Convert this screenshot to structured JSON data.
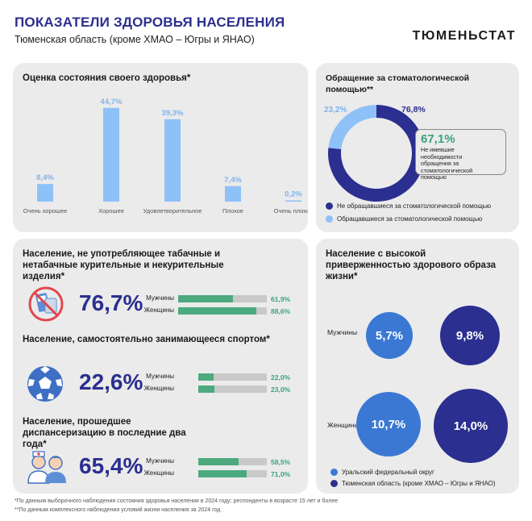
{
  "header": {
    "title": "ПОКАЗАТЕЛИ ЗДОРОВЬЯ НАСЕЛЕНИЯ",
    "subtitle": "Тюменская область (кроме ХМАО – Югры и ЯНАО)",
    "brand": "ТЮМЕНЬСТАТ"
  },
  "colors": {
    "light_blue": "#8ec1f7",
    "dark_blue": "#2b2f8f",
    "mid_blue": "#3a78d4",
    "green": "#4daa7e",
    "gray": "#c9c9c9"
  },
  "chart_data": [
    {
      "type": "bar",
      "title": "Оценка состояния своего здоровья*",
      "categories": [
        "Очень хорошее",
        "Хорошее",
        "Удовлетворительное",
        "Плохое",
        "Очень плохое"
      ],
      "values": [
        8.4,
        44.7,
        39.3,
        7.4,
        0.2
      ],
      "value_labels": [
        "8,4%",
        "44,7%",
        "39,3%",
        "7,4%",
        "0,2%"
      ],
      "ylim": [
        0,
        50
      ]
    },
    {
      "type": "pie",
      "title": "Обращение за стоматологической помощью**",
      "series": [
        {
          "name": "Не обращавшиеся за стоматологической помощью",
          "value": 76.8,
          "label": "76,8%"
        },
        {
          "name": "Обращавшиеся за стоматологической помощью",
          "value": 23.2,
          "label": "23,2%"
        }
      ],
      "annotation": {
        "value": "67,1%",
        "text": "Не имевшие необходимости обращения за стоматологической помощью"
      }
    },
    {
      "type": "bar",
      "title": "Население, не употребляющее табачные и нетабачные курительные и некурительные изделия*",
      "total_label": "76,7%",
      "categories": [
        "Мужчины",
        "Женщины"
      ],
      "values": [
        61.9,
        88.6
      ],
      "value_labels": [
        "61,9%",
        "88,6%"
      ],
      "xlim": [
        0,
        100
      ]
    },
    {
      "type": "bar",
      "title": "Население, самостоятельно занимающееся спортом*",
      "total_label": "22,6%",
      "categories": [
        "Мужчины",
        "Женщины"
      ],
      "values": [
        22.0,
        23.0
      ],
      "value_labels": [
        "22,0%",
        "23,0%"
      ],
      "xlim": [
        0,
        100
      ]
    },
    {
      "type": "bar",
      "title": "Население, прошедшее диспансеризацию в последние два года*",
      "total_label": "65,4%",
      "categories": [
        "Мужчины",
        "Женщины"
      ],
      "values": [
        58.5,
        71.0
      ],
      "value_labels": [
        "58,5%",
        "71,0%"
      ],
      "xlim": [
        0,
        100
      ]
    },
    {
      "type": "scatter",
      "title": "Население с высокой приверженностью здорового образа жизни*",
      "rows": [
        "Мужчины",
        "Женщины"
      ],
      "series": [
        {
          "name": "Уральский федеральный округ",
          "values": [
            5.7,
            10.7
          ],
          "labels": [
            "5,7%",
            "10,7%"
          ]
        },
        {
          "name": "Тюменская область (кроме ХМАО – Югры и ЯНАО)",
          "values": [
            9.8,
            14.0
          ],
          "labels": [
            "9,8%",
            "14,0%"
          ]
        }
      ]
    }
  ],
  "footnotes": [
    "*По данным выборочного наблюдения состояния здоровья населения в 2024 году; респонденты в возрасте 15 лет и более",
    "**По данным комплексного наблюдения условий жизни населения за 2024 год"
  ],
  "icons": [
    "no-smoking-icon",
    "soccer-ball-icon",
    "medical-staff-icon"
  ]
}
